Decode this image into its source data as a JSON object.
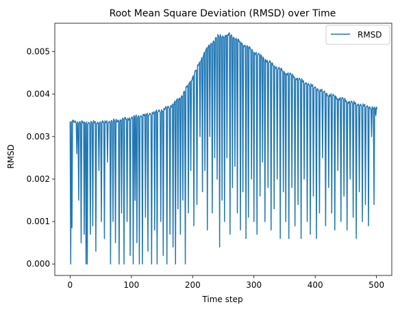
{
  "chart_data": {
    "type": "line",
    "title": "Root Mean Square Deviation (RMSD) over Time",
    "xlabel": "Time step",
    "ylabel": "RMSD",
    "xlim": [
      -25,
      525
    ],
    "ylim": [
      -0.00027,
      0.00567
    ],
    "xticks": [
      0,
      100,
      200,
      300,
      400,
      500
    ],
    "yticks": [
      0.0,
      0.001,
      0.002,
      0.003,
      0.004,
      0.005
    ],
    "ytick_labels": [
      "0.000",
      "0.001",
      "0.002",
      "0.003",
      "0.004",
      "0.005"
    ],
    "grid": false,
    "legend_position": "top-right",
    "color": "#1f77b4",
    "series": [
      {
        "name": "RMSD",
        "envelope": [
          [
            0,
            0.00335
          ],
          [
            20,
            0.00333
          ],
          [
            50,
            0.00333
          ],
          [
            80,
            0.00338
          ],
          [
            100,
            0.00344
          ],
          [
            120,
            0.0035
          ],
          [
            140,
            0.00358
          ],
          [
            160,
            0.00368
          ],
          [
            180,
            0.0039
          ],
          [
            200,
            0.0044
          ],
          [
            220,
            0.005
          ],
          [
            240,
            0.00535
          ],
          [
            260,
            0.0054
          ],
          [
            280,
            0.0052
          ],
          [
            300,
            0.005
          ],
          [
            320,
            0.0048
          ],
          [
            340,
            0.0046
          ],
          [
            360,
            0.00445
          ],
          [
            380,
            0.0043
          ],
          [
            400,
            0.00415
          ],
          [
            420,
            0.004
          ],
          [
            440,
            0.0039
          ],
          [
            460,
            0.0038
          ],
          [
            480,
            0.00372
          ],
          [
            500,
            0.00366
          ]
        ],
        "dips": [
          [
            1,
            0.0
          ],
          [
            3,
            0.00085
          ],
          [
            11,
            0.0026
          ],
          [
            14,
            0.0015
          ],
          [
            18,
            0.0005
          ],
          [
            23,
            0.0007
          ],
          [
            26,
            0.0
          ],
          [
            28,
            0.0
          ],
          [
            33,
            0.0007
          ],
          [
            37,
            0.0009
          ],
          [
            42,
            0.0003
          ],
          [
            47,
            0.0022
          ],
          [
            51,
            0.001
          ],
          [
            56,
            0.0006
          ],
          [
            61,
            0.0024
          ],
          [
            66,
            0.0
          ],
          [
            70,
            0.001
          ],
          [
            74,
            0.0005
          ],
          [
            80,
            0.0
          ],
          [
            84,
            0.0012
          ],
          [
            88,
            0.0
          ],
          [
            93,
            0.001
          ],
          [
            98,
            0.0002
          ],
          [
            103,
            0.0
          ],
          [
            106,
            0.0015
          ],
          [
            109,
            0.0005
          ],
          [
            113,
            0.0
          ],
          [
            118,
            0.0
          ],
          [
            123,
            0.0011
          ],
          [
            127,
            0.0003
          ],
          [
            133,
            0.0
          ],
          [
            138,
            0.0008
          ],
          [
            142,
            0.0
          ],
          [
            148,
            0.001
          ],
          [
            152,
            0.0002
          ],
          [
            158,
            0.0
          ],
          [
            163,
            0.0007
          ],
          [
            168,
            0.0004
          ],
          [
            172,
            0.0
          ],
          [
            176,
            0.0013
          ],
          [
            180,
            0.0007
          ],
          [
            184,
            0.0015
          ],
          [
            188,
            0.0
          ],
          [
            193,
            0.0012
          ],
          [
            197,
            0.0022
          ],
          [
            202,
            0.0009
          ],
          [
            207,
            0.0014
          ],
          [
            212,
            0.003
          ],
          [
            216,
            0.0017
          ],
          [
            220,
            0.0022
          ],
          [
            224,
            0.0008
          ],
          [
            228,
            0.003
          ],
          [
            232,
            0.0012
          ],
          [
            236,
            0.0025
          ],
          [
            240,
            0.002
          ],
          [
            244,
            0.0004
          ],
          [
            248,
            0.0015
          ],
          [
            252,
            0.001
          ],
          [
            256,
            0.0025
          ],
          [
            261,
            0.0007
          ],
          [
            265,
            0.0018
          ],
          [
            269,
            0.0023
          ],
          [
            273,
            0.0012
          ],
          [
            278,
            0.0008
          ],
          [
            282,
            0.0017
          ],
          [
            287,
            0.0006
          ],
          [
            291,
            0.0011
          ],
          [
            296,
            0.002
          ],
          [
            300,
            0.001
          ],
          [
            305,
            0.0007
          ],
          [
            310,
            0.0016
          ],
          [
            314,
            0.0024
          ],
          [
            318,
            0.001
          ],
          [
            323,
            0.0018
          ],
          [
            328,
            0.0008
          ],
          [
            333,
            0.0013
          ],
          [
            338,
            0.002
          ],
          [
            343,
            0.0006
          ],
          [
            348,
            0.0017
          ],
          [
            352,
            0.001
          ],
          [
            357,
            0.0006
          ],
          [
            362,
            0.0018
          ],
          [
            367,
            0.0009
          ],
          [
            372,
            0.0014
          ],
          [
            377,
            0.0006
          ],
          [
            382,
            0.002
          ],
          [
            387,
            0.001
          ],
          [
            392,
            0.0007
          ],
          [
            397,
            0.0016
          ],
          [
            402,
            0.0006
          ],
          [
            407,
            0.0012
          ],
          [
            412,
            0.0025
          ],
          [
            417,
            0.0009
          ],
          [
            422,
            0.0018
          ],
          [
            427,
            0.0012
          ],
          [
            432,
            0.0008
          ],
          [
            437,
            0.0022
          ],
          [
            442,
            0.001
          ],
          [
            447,
            0.0016
          ],
          [
            452,
            0.0008
          ],
          [
            457,
            0.002
          ],
          [
            462,
            0.0011
          ],
          [
            467,
            0.0006
          ],
          [
            472,
            0.0017
          ],
          [
            477,
            0.001
          ],
          [
            482,
            0.0014
          ],
          [
            487,
            0.0009
          ],
          [
            492,
            0.003
          ],
          [
            496,
            0.0014
          ],
          [
            499,
            0.0035
          ]
        ]
      }
    ]
  }
}
